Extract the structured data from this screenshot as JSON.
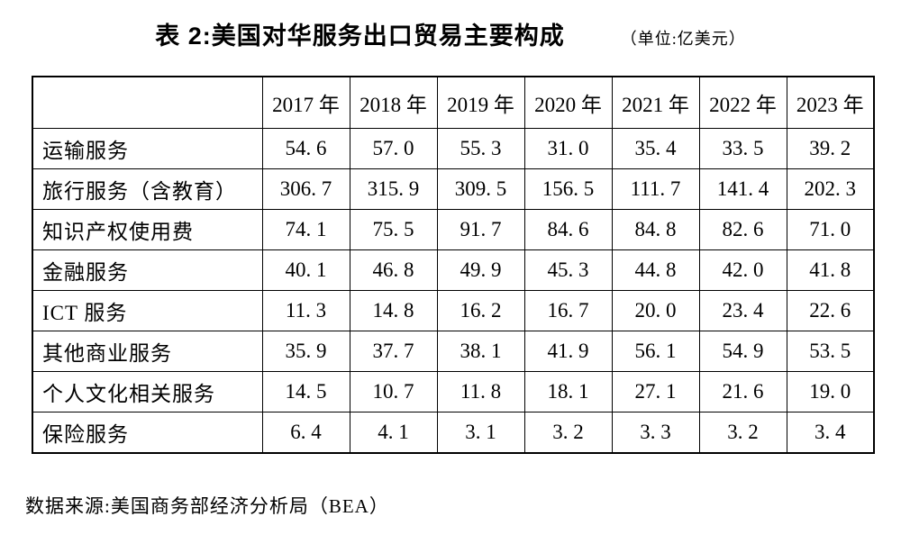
{
  "title": {
    "text": "表 2:美国对华服务出口贸易主要构成",
    "unit": "（单位:亿美元）"
  },
  "footer": {
    "source": "数据来源:美国商务部经济分析局（BEA）"
  },
  "chart_data": {
    "type": "table",
    "title": "表 2:美国对华服务出口贸易主要构成",
    "unit_label": "亿美元",
    "columns": [
      "2017 年",
      "2018 年",
      "2019 年",
      "2020 年",
      "2021 年",
      "2022 年",
      "2023 年"
    ],
    "rows": [
      {
        "label": "运输服务",
        "values": [
          54.6,
          57.0,
          55.3,
          31.0,
          35.4,
          33.5,
          39.2
        ]
      },
      {
        "label": "旅行服务（含教育）",
        "values": [
          306.7,
          315.9,
          309.5,
          156.5,
          111.7,
          141.4,
          202.3
        ]
      },
      {
        "label": "知识产权使用费",
        "values": [
          74.1,
          75.5,
          91.7,
          84.6,
          84.8,
          82.6,
          71.0
        ]
      },
      {
        "label": "金融服务",
        "values": [
          40.1,
          46.8,
          49.9,
          45.3,
          44.8,
          42.0,
          41.8
        ]
      },
      {
        "label": "ICT 服务",
        "values": [
          11.3,
          14.8,
          16.2,
          16.7,
          20.0,
          23.4,
          22.6
        ]
      },
      {
        "label": "其他商业服务",
        "values": [
          35.9,
          37.7,
          38.1,
          41.9,
          56.1,
          54.9,
          53.5
        ]
      },
      {
        "label": "个人文化相关服务",
        "values": [
          14.5,
          10.7,
          11.8,
          18.1,
          27.1,
          21.6,
          19.0
        ]
      },
      {
        "label": "保险服务",
        "values": [
          6.4,
          4.1,
          3.1,
          3.2,
          3.3,
          3.2,
          3.4
        ]
      }
    ],
    "source": "数据来源:美国商务部经济分析局（BEA）"
  }
}
